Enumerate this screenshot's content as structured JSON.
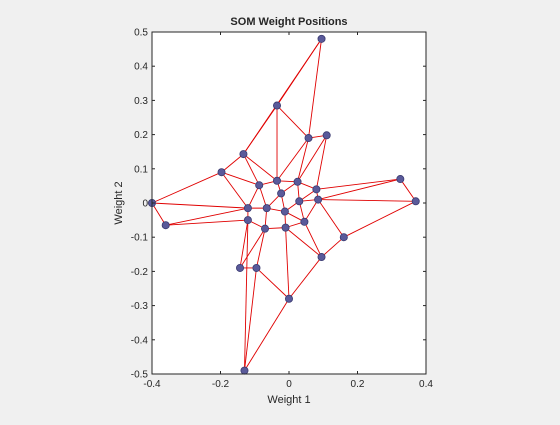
{
  "figure": {
    "background": "#f0f0f0"
  },
  "chart_data": {
    "type": "scatter",
    "title": "SOM Weight Positions",
    "xlabel": "Weight 1",
    "ylabel": "Weight 2",
    "xlim": [
      -0.4,
      0.4
    ],
    "ylim": [
      -0.5,
      0.5
    ],
    "xticks": [
      -0.4,
      -0.2,
      0,
      0.2,
      0.4
    ],
    "xtick_labels": [
      "-0.4",
      "-0.2",
      "0",
      "0.2",
      "0.4"
    ],
    "yticks": [
      -0.5,
      -0.4,
      -0.3,
      -0.2,
      -0.1,
      0,
      0.1,
      0.2,
      0.3,
      0.4,
      0.5
    ],
    "ytick_labels": [
      "-0.5",
      "-0.4",
      "-0.3",
      "-0.2",
      "-0.1",
      "0",
      "0.1",
      "0.2",
      "0.3",
      "0.4",
      "0.5"
    ],
    "grid": false,
    "colors": {
      "axes_bg": "#ffffff",
      "edge": "#e00000",
      "marker": "#5a5a9a",
      "marker_edge": "#3a3a70",
      "axis": "#262626"
    },
    "nodes": [
      {
        "id": 0,
        "x": -0.4,
        "y": 0.0
      },
      {
        "id": 1,
        "x": -0.36,
        "y": -0.065
      },
      {
        "id": 2,
        "x": -0.197,
        "y": 0.09
      },
      {
        "id": 3,
        "x": -0.133,
        "y": 0.143
      },
      {
        "id": 4,
        "x": -0.087,
        "y": 0.052
      },
      {
        "id": 5,
        "x": -0.035,
        "y": 0.065
      },
      {
        "id": 6,
        "x": -0.035,
        "y": 0.285
      },
      {
        "id": 7,
        "x": 0.095,
        "y": 0.48
      },
      {
        "id": 8,
        "x": 0.057,
        "y": 0.19
      },
      {
        "id": 9,
        "x": 0.11,
        "y": 0.198
      },
      {
        "id": 10,
        "x": 0.025,
        "y": 0.062
      },
      {
        "id": 11,
        "x": -0.023,
        "y": 0.028
      },
      {
        "id": 12,
        "x": 0.08,
        "y": 0.04
      },
      {
        "id": 13,
        "x": 0.03,
        "y": 0.005
      },
      {
        "id": 14,
        "x": 0.085,
        "y": 0.01
      },
      {
        "id": 15,
        "x": 0.325,
        "y": 0.07
      },
      {
        "id": 16,
        "x": 0.37,
        "y": 0.005
      },
      {
        "id": 17,
        "x": -0.12,
        "y": -0.015
      },
      {
        "id": 18,
        "x": -0.065,
        "y": -0.015
      },
      {
        "id": 19,
        "x": -0.012,
        "y": -0.025
      },
      {
        "id": 20,
        "x": -0.12,
        "y": -0.05
      },
      {
        "id": 21,
        "x": -0.07,
        "y": -0.075
      },
      {
        "id": 22,
        "x": -0.01,
        "y": -0.072
      },
      {
        "id": 23,
        "x": 0.045,
        "y": -0.055
      },
      {
        "id": 24,
        "x": 0.16,
        "y": -0.1
      },
      {
        "id": 25,
        "x": -0.143,
        "y": -0.19
      },
      {
        "id": 26,
        "x": -0.095,
        "y": -0.19
      },
      {
        "id": 27,
        "x": 0.095,
        "y": -0.158
      },
      {
        "id": 28,
        "x": 0.0,
        "y": -0.28
      },
      {
        "id": 29,
        "x": -0.13,
        "y": -0.49
      }
    ],
    "edges": [
      [
        7,
        6
      ],
      [
        7,
        3
      ],
      [
        7,
        8
      ],
      [
        6,
        3
      ],
      [
        6,
        5
      ],
      [
        6,
        8
      ],
      [
        8,
        9
      ],
      [
        8,
        10
      ],
      [
        8,
        5
      ],
      [
        9,
        10
      ],
      [
        9,
        12
      ],
      [
        3,
        2
      ],
      [
        3,
        4
      ],
      [
        3,
        5
      ],
      [
        2,
        4
      ],
      [
        2,
        0
      ],
      [
        2,
        17
      ],
      [
        0,
        1
      ],
      [
        0,
        17
      ],
      [
        1,
        17
      ],
      [
        1,
        20
      ],
      [
        4,
        5
      ],
      [
        4,
        17
      ],
      [
        4,
        18
      ],
      [
        5,
        11
      ],
      [
        5,
        10
      ],
      [
        10,
        11
      ],
      [
        10,
        13
      ],
      [
        10,
        12
      ],
      [
        12,
        13
      ],
      [
        12,
        14
      ],
      [
        12,
        15
      ],
      [
        15,
        16
      ],
      [
        15,
        14
      ],
      [
        16,
        14
      ],
      [
        16,
        24
      ],
      [
        13,
        14
      ],
      [
        13,
        19
      ],
      [
        13,
        23
      ],
      [
        14,
        23
      ],
      [
        14,
        24
      ],
      [
        11,
        18
      ],
      [
        11,
        19
      ],
      [
        17,
        18
      ],
      [
        17,
        20
      ],
      [
        18,
        19
      ],
      [
        18,
        21
      ],
      [
        20,
        21
      ],
      [
        20,
        25
      ],
      [
        20,
        29
      ],
      [
        19,
        22
      ],
      [
        19,
        23
      ],
      [
        21,
        22
      ],
      [
        21,
        26
      ],
      [
        21,
        25
      ],
      [
        22,
        23
      ],
      [
        22,
        27
      ],
      [
        22,
        28
      ],
      [
        23,
        27
      ],
      [
        24,
        27
      ],
      [
        25,
        26
      ],
      [
        26,
        28
      ],
      [
        26,
        29
      ],
      [
        27,
        28
      ],
      [
        28,
        29
      ]
    ]
  }
}
